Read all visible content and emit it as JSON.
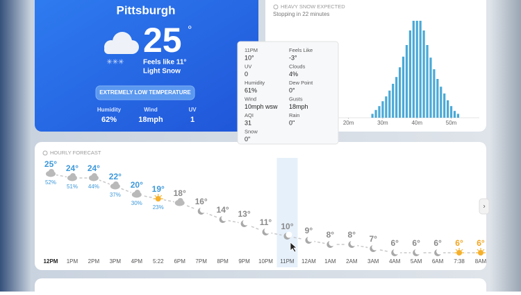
{
  "current": {
    "city": "Pittsburgh",
    "temp": "25",
    "degree": "°",
    "feels_like": "Feels like 11°",
    "condition": "Light Snow",
    "alert": "EXTREMELY LOW TEMPERATURE",
    "stats": [
      {
        "label": "Humidity",
        "value": "62%"
      },
      {
        "label": "Wind",
        "value": "18mph"
      },
      {
        "label": "UV",
        "value": "1"
      }
    ]
  },
  "precipitation": {
    "title": "HEAVY SNOW EXPECTED",
    "subtitle": "Stopping in 22 minutes",
    "color": "#4aa9d6",
    "minutes": [
      27,
      28,
      29,
      30,
      31,
      32,
      33,
      34,
      35,
      36,
      37,
      38,
      39,
      40,
      41,
      42,
      43,
      44,
      45,
      46,
      47,
      48,
      49,
      50,
      51,
      52
    ],
    "intensity": [
      4,
      8,
      12,
      17,
      22,
      28,
      35,
      42,
      52,
      63,
      75,
      90,
      100,
      100,
      100,
      90,
      75,
      62,
      50,
      40,
      32,
      25,
      18,
      12,
      7,
      4
    ],
    "xlim": [
      0,
      58
    ],
    "ylim": [
      0,
      100
    ],
    "xticks": [
      {
        "value": 20,
        "label": "20m"
      },
      {
        "value": 30,
        "label": "30m"
      },
      {
        "value": 40,
        "label": "40m"
      },
      {
        "value": 50,
        "label": "50m"
      }
    ]
  },
  "tooltip": {
    "items": [
      {
        "label": "11PM",
        "value": "10°"
      },
      {
        "label": "Feels Like",
        "value": "-3°"
      },
      {
        "label": "UV",
        "value": "0"
      },
      {
        "label": "Clouds",
        "value": "4%"
      },
      {
        "label": "Humidity",
        "value": "61%"
      },
      {
        "label": "Dew Point",
        "value": "0°"
      },
      {
        "label": "Wind",
        "value": "10mph wsw"
      },
      {
        "label": "Gusts",
        "value": "18mph"
      },
      {
        "label": "AQI",
        "value": "31"
      },
      {
        "label": "Rain",
        "value": "0\""
      },
      {
        "label": "Snow",
        "value": "0\""
      }
    ]
  },
  "hourly": {
    "title": "HOURLY FORECAST",
    "ylim": [
      0,
      30
    ],
    "line_color": "#c8c8c8",
    "hours": [
      {
        "time": "12PM",
        "temp": 25,
        "temp_label": "25°",
        "precip": "52%",
        "icon": "cloud",
        "color": "#3d98da"
      },
      {
        "time": "1PM",
        "temp": 24,
        "temp_label": "24°",
        "precip": "51%",
        "icon": "cloud",
        "color": "#3d98da"
      },
      {
        "time": "2PM",
        "temp": 24,
        "temp_label": "24°",
        "precip": "44%",
        "icon": "cloud",
        "color": "#3d98da"
      },
      {
        "time": "3PM",
        "temp": 22,
        "temp_label": "22°",
        "precip": "37%",
        "icon": "cloud",
        "color": "#3d98da"
      },
      {
        "time": "4PM",
        "temp": 20,
        "temp_label": "20°",
        "precip": "30%",
        "icon": "cloud",
        "color": "#3d98da"
      },
      {
        "time": "5:22",
        "temp": 19,
        "temp_label": "19°",
        "precip": "23%",
        "icon": "sun",
        "color": "#3d98da"
      },
      {
        "time": "6PM",
        "temp": 18,
        "temp_label": "18°",
        "icon": "cloud",
        "color": "#8a8a8a"
      },
      {
        "time": "7PM",
        "temp": 16,
        "temp_label": "16°",
        "icon": "moon",
        "color": "#8a8a8a"
      },
      {
        "time": "8PM",
        "temp": 14,
        "temp_label": "14°",
        "icon": "moon",
        "color": "#8a8a8a"
      },
      {
        "time": "9PM",
        "temp": 13,
        "temp_label": "13°",
        "icon": "moon",
        "color": "#8a8a8a"
      },
      {
        "time": "10PM",
        "temp": 11,
        "temp_label": "11°",
        "icon": "moon",
        "color": "#8a8a8a"
      },
      {
        "time": "11PM",
        "temp": 10,
        "temp_label": "10°",
        "icon": "moon",
        "color": "#8a8a8a"
      },
      {
        "time": "12AM",
        "temp": 9,
        "temp_label": "9°",
        "icon": "moon",
        "color": "#8a8a8a"
      },
      {
        "time": "1AM",
        "temp": 8,
        "temp_label": "8°",
        "icon": "moon",
        "color": "#8a8a8a"
      },
      {
        "time": "2AM",
        "temp": 8,
        "temp_label": "8°",
        "icon": "moon",
        "color": "#8a8a8a"
      },
      {
        "time": "3AM",
        "temp": 7,
        "temp_label": "7°",
        "icon": "moon",
        "color": "#8a8a8a"
      },
      {
        "time": "4AM",
        "temp": 6,
        "temp_label": "6°",
        "icon": "moon",
        "color": "#8a8a8a"
      },
      {
        "time": "5AM",
        "temp": 6,
        "temp_label": "6°",
        "icon": "moon",
        "color": "#8a8a8a"
      },
      {
        "time": "6AM",
        "temp": 6,
        "temp_label": "6°",
        "icon": "moon",
        "color": "#8a8a8a"
      },
      {
        "time": "7:38",
        "temp": 6,
        "temp_label": "6°",
        "icon": "sun",
        "color": "#f2a51f"
      },
      {
        "time": "8AM",
        "temp": 6,
        "temp_label": "6°",
        "icon": "sun",
        "color": "#f2a51f"
      }
    ]
  }
}
